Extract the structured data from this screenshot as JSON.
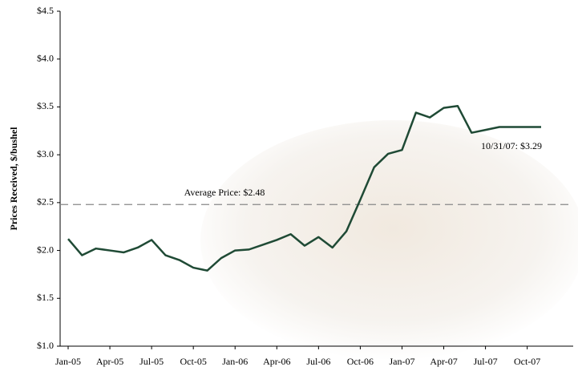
{
  "chart_data": {
    "type": "line",
    "y_label": "Prices Received, $/bushel",
    "categories": [
      "Jan-05",
      null,
      null,
      "Apr-05",
      null,
      null,
      "Jul-05",
      null,
      null,
      "Oct-05",
      null,
      null,
      "Jan-06",
      null,
      null,
      "Apr-06",
      null,
      null,
      "Jul-06",
      null,
      null,
      "Oct-06",
      null,
      null,
      "Jan-07",
      null,
      null,
      "Apr-07",
      null,
      null,
      "Jul-07",
      null,
      null,
      "Oct-07",
      null
    ],
    "series": [
      {
        "color": "#1f4a35",
        "values": [
          2.12,
          1.95,
          2.02,
          2.0,
          1.98,
          2.03,
          2.11,
          1.95,
          1.9,
          1.82,
          1.79,
          1.92,
          2.0,
          2.01,
          2.06,
          2.11,
          2.17,
          2.05,
          2.14,
          2.03,
          2.2,
          2.53,
          2.87,
          3.01,
          3.05,
          3.44,
          3.39,
          3.49,
          3.51,
          3.23,
          3.26,
          3.29,
          3.29,
          3.29,
          3.29
        ]
      }
    ],
    "ylim": [
      1.0,
      4.5
    ],
    "yticks": [
      {
        "value": 1.0,
        "label": "$1.0"
      },
      {
        "value": 1.5,
        "label": "$1.5"
      },
      {
        "value": 2.0,
        "label": "$2.0"
      },
      {
        "value": 2.5,
        "label": "$2.5"
      },
      {
        "value": 3.0,
        "label": "$3.0"
      },
      {
        "value": 3.5,
        "label": "$3.5"
      },
      {
        "value": 4.0,
        "label": "$4.0"
      },
      {
        "value": 4.5,
        "label": "$4.5"
      }
    ],
    "average": {
      "value": 2.48,
      "label": "Average Price: $2.48",
      "color": "#888888"
    },
    "annotation": "10/31/07:  $3.29"
  }
}
